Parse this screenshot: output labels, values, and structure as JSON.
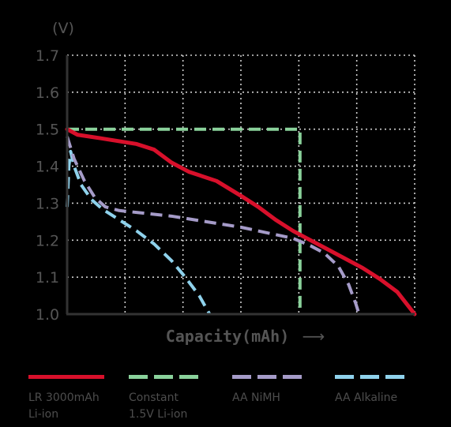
{
  "chart_data": {
    "type": "line",
    "ylabel": "(V)",
    "xlabel": "Capacity(mAh)",
    "xlabel_arrow": "⟶",
    "ylim": [
      1.0,
      1.7
    ],
    "xlim": [
      0,
      10
    ],
    "y_ticks": [
      "1.7",
      "1.6",
      "1.5",
      "1.4",
      "1.3",
      "1.2",
      "1.1",
      "1.0"
    ],
    "grid": true,
    "legend_position": "bottom",
    "series": [
      {
        "name": "LR 3000mAh\nLi-ion",
        "color": "#d8102b",
        "style": "solid",
        "x": [
          0,
          0.3,
          1,
          2,
          2.5,
          3,
          3.5,
          4.3,
          5,
          5.5,
          6,
          6.5,
          7,
          7.5,
          8,
          8.5,
          9,
          9.5,
          10
        ],
        "y": [
          1.5,
          1.485,
          1.475,
          1.46,
          1.445,
          1.41,
          1.385,
          1.36,
          1.32,
          1.29,
          1.255,
          1.225,
          1.2,
          1.175,
          1.15,
          1.125,
          1.095,
          1.06,
          1.0
        ]
      },
      {
        "name": "Constant\n1.5V Li-ion",
        "color": "#8ad29b",
        "style": "dashed",
        "x": [
          0,
          6.7,
          6.7
        ],
        "y": [
          1.5,
          1.5,
          1.0
        ]
      },
      {
        "name": "AA NiMH",
        "color": "#a59bc8",
        "style": "dashed",
        "x": [
          0,
          0.2,
          0.5,
          0.8,
          1.1,
          1.5,
          2,
          3,
          4,
          5,
          6,
          6.5,
          7,
          7.4,
          7.8,
          8.1,
          8.3,
          8.4
        ],
        "y": [
          1.48,
          1.42,
          1.36,
          1.315,
          1.29,
          1.28,
          1.275,
          1.265,
          1.25,
          1.235,
          1.215,
          1.205,
          1.185,
          1.165,
          1.13,
          1.08,
          1.03,
          1.0
        ]
      },
      {
        "name": "AA Alkaline",
        "color": "#8fd2ec",
        "style": "dashed",
        "x": [
          0,
          0.05,
          0.1,
          0.2,
          0.4,
          0.7,
          1,
          1.5,
          2,
          2.5,
          3,
          3.4,
          3.8,
          4.1
        ],
        "y": [
          1.29,
          1.4,
          1.44,
          1.4,
          1.35,
          1.31,
          1.285,
          1.255,
          1.225,
          1.19,
          1.145,
          1.1,
          1.05,
          1.0
        ]
      }
    ]
  }
}
